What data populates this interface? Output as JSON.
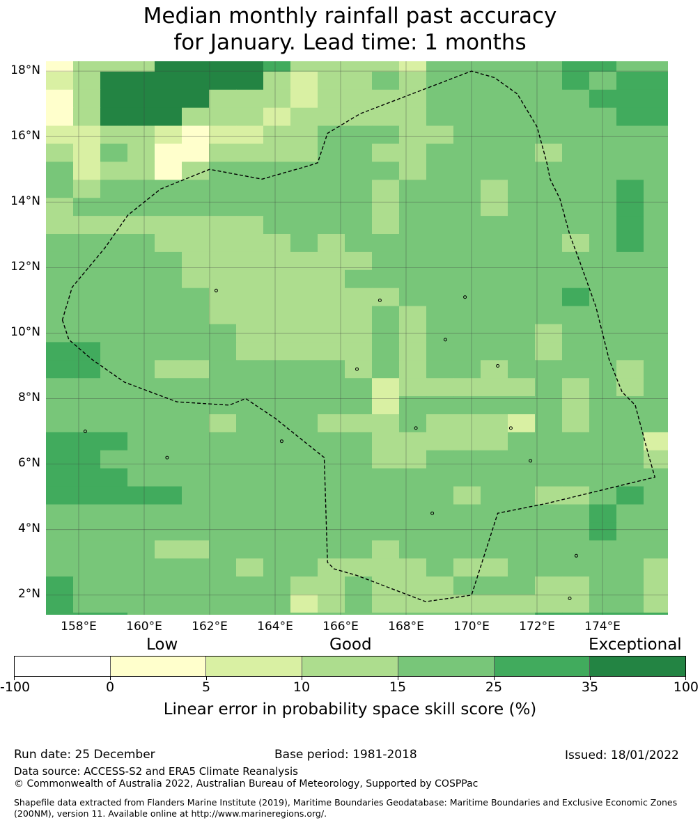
{
  "title": {
    "line1": "Median monthly rainfall past accuracy",
    "line2": "for January. Lead time: 1 months"
  },
  "map": {
    "lon_range": [
      157,
      176
    ],
    "lat_range": [
      1.4,
      18.3
    ],
    "lat_labels": [
      "18°N",
      "16°N",
      "14°N",
      "12°N",
      "10°N",
      "8°N",
      "6°N",
      "4°N",
      "2°N"
    ],
    "lon_labels": [
      "158°E",
      "160°E",
      "162°E",
      "164°E",
      "166°E",
      "168°E",
      "170°E",
      "172°E",
      "174°E"
    ],
    "grid_colors": [
      "#ffffff",
      "#ffffcc",
      "#d9f0a3",
      "#addd8e",
      "#78c679",
      "#41ab5d",
      "#238443"
    ],
    "grid_rows": [
      "13336666533332444445544",
      "23666666323343444445455",
      "13666633323333444444555",
      "13666333233333444444455",
      "22332122334443344444444",
      "32431133334433444434444",
      "42331344444443444444444",
      "43444444444434443444454",
      "34444444444434443444454",
      "33333333444434444444454",
      "44443333343444444443454",
      "44444333333344444444444",
      "44444333333444444444444",
      "44444433333334444445444",
      "44444433333343444444444",
      "44444443333343444434444",
      "55444443333343444434444",
      "55443344444343443444434",
      "44444444444423333343434",
      "44444444444424444443444",
      "44444434443334333243444",
      "55544444444433333444442",
      "55444444444433444444443",
      "55544444444444444444444",
      "55555444444444434433454",
      "44444444444444444444544",
      "44444444444444444444544",
      "44443344444434444444444",
      "44444443443333433444443",
      "54444444433433344433443",
      "54444444423433333333443",
      "55544444444444444455555",
      "55544444444444444455555",
      "55544444444444444455555",
      "55444444444444444455555"
    ],
    "eez_boundary_lonlat": [
      [
        157.5,
        10.4
      ],
      [
        157.7,
        9.8
      ],
      [
        158.4,
        9.2
      ],
      [
        159.4,
        8.5
      ],
      [
        161.0,
        7.9
      ],
      [
        162.6,
        7.8
      ],
      [
        163.1,
        8.0
      ],
      [
        164.0,
        7.4
      ],
      [
        165.0,
        6.6
      ],
      [
        165.5,
        6.2
      ],
      [
        165.6,
        3.0
      ],
      [
        165.8,
        2.8
      ],
      [
        166.5,
        2.6
      ],
      [
        168.6,
        1.8
      ],
      [
        170.0,
        2.0
      ],
      [
        170.8,
        4.5
      ],
      [
        172.3,
        4.8
      ],
      [
        175.6,
        5.6
      ],
      [
        175.4,
        6.3
      ],
      [
        175.0,
        7.8
      ],
      [
        174.6,
        8.2
      ],
      [
        174.2,
        9.2
      ],
      [
        173.8,
        10.8
      ],
      [
        173.3,
        12.2
      ],
      [
        173.0,
        13.0
      ],
      [
        172.7,
        14.1
      ],
      [
        172.4,
        14.7
      ],
      [
        172.3,
        15.2
      ],
      [
        172.0,
        16.3
      ],
      [
        171.4,
        17.3
      ],
      [
        170.7,
        17.8
      ],
      [
        170.0,
        18.0
      ],
      [
        166.6,
        16.7
      ],
      [
        165.6,
        16.1
      ],
      [
        165.3,
        15.2
      ],
      [
        165.0,
        15.1
      ],
      [
        163.6,
        14.7
      ],
      [
        162.0,
        15.0
      ],
      [
        160.5,
        14.4
      ],
      [
        159.5,
        13.6
      ],
      [
        158.8,
        12.6
      ],
      [
        157.8,
        11.4
      ],
      [
        157.5,
        10.4
      ]
    ]
  },
  "colorbar": {
    "category_words": [
      "Low",
      "Good",
      "Exceptional"
    ],
    "tick_labels": [
      "-100",
      "0",
      "5",
      "10",
      "15",
      "25",
      "35",
      "100"
    ],
    "label": "Linear error in probability space skill score (%)"
  },
  "footer": {
    "run_date": "Run date: 25 December",
    "base_period": "Base period: 1981-2018",
    "issued": "Issued: 18/01/2022",
    "data_source": "Data source: ACCESS-S2 and ERA5 Climate Reanalysis",
    "copyright": "© Commonwealth of Australia 2022, Australian Bureau of Meteorology, Supported by COSPPac",
    "shapefile_note": "Shapefile data extracted from Flanders Marine Institute (2019), Maritime Boundaries Geodatabase: Maritime Boundaries and Exclusive Economic Zones (200NM), version 11. Available online at http://www.marineregions.org/."
  }
}
